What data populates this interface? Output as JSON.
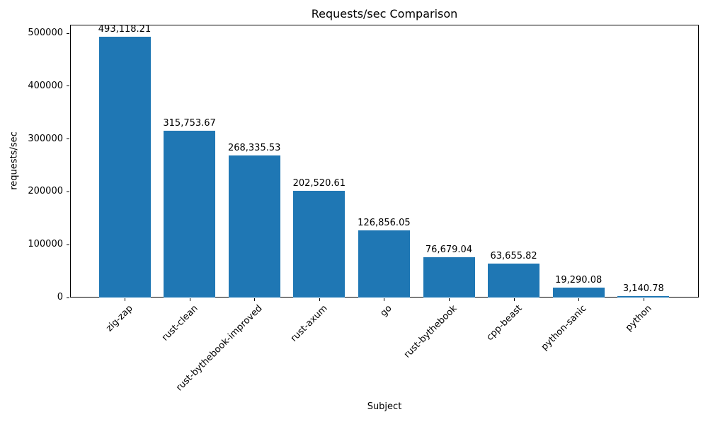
{
  "chart_data": {
    "type": "bar",
    "title": "Requests/sec Comparison",
    "xlabel": "Subject",
    "ylabel": "requests/sec",
    "categories": [
      "zig-zap",
      "rust-clean",
      "rust-bythebook-improved",
      "rust-axum",
      "go",
      "rust-bythebook",
      "cpp-beast",
      "python-sanic",
      "python"
    ],
    "values": [
      493118.21,
      315753.67,
      268335.53,
      202520.61,
      126856.05,
      76679.04,
      63655.82,
      19290.08,
      3140.78
    ],
    "value_labels": [
      "493,118.21",
      "315,753.67",
      "268,335.53",
      "202,520.61",
      "126,856.05",
      "76,679.04",
      "63,655.82",
      "19,290.08",
      "3,140.78"
    ],
    "yticks": [
      0,
      100000,
      200000,
      300000,
      400000,
      500000
    ],
    "ytick_labels": [
      "0",
      "100000",
      "200000",
      "300000",
      "400000",
      "500000"
    ],
    "ylim": [
      0,
      516000
    ],
    "bar_color": "#1f77b4",
    "spine_color": "#000000",
    "grid": false,
    "legend_position": "none",
    "x_tick_rotation_deg": 45
  }
}
